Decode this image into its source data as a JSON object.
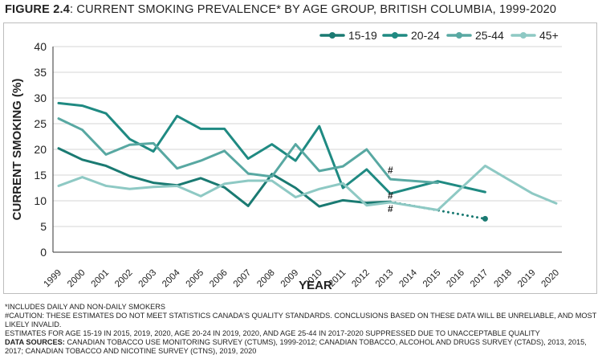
{
  "title": {
    "lead": "FIGURE 2.4",
    "rest": ": CURRENT SMOKING PREVALENCE* BY AGE GROUP, BRITISH COLUMBIA, 1999-2020"
  },
  "colors": {
    "s1519": "#1a7a72",
    "s2024": "#1f8a82",
    "s2544": "#58a8a2",
    "s45": "#8ec9c4",
    "grid": "#d6d6d6",
    "axis": "#333333"
  },
  "chart_data": {
    "type": "line",
    "xlabel": "YEAR",
    "ylabel": "CURRENT SMOKING (%)",
    "ylim": [
      0,
      40
    ],
    "yticks": [
      0,
      5,
      10,
      15,
      20,
      25,
      30,
      35,
      40
    ],
    "categories": [
      "1999",
      "2000",
      "2001",
      "2002",
      "2003",
      "2004",
      "2005",
      "2006",
      "2007",
      "2008",
      "2009",
      "2010",
      "2011",
      "2012",
      "2013",
      "2014",
      "2015",
      "2016",
      "2017",
      "2018",
      "2019",
      "2020"
    ],
    "grid": "horizontal",
    "legend_position": "top-right",
    "series": [
      {
        "name": "15-19",
        "color_key": "s1519",
        "marker": "circle",
        "points": [
          [
            "1999",
            20.2
          ],
          [
            "2000",
            18.0
          ],
          [
            "2001",
            16.8
          ],
          [
            "2002",
            14.8
          ],
          [
            "2003",
            13.5
          ],
          [
            "2004",
            13.0
          ],
          [
            "2005",
            14.4
          ],
          [
            "2006",
            12.6
          ],
          [
            "2007",
            9.0
          ],
          [
            "2008",
            15.2
          ],
          [
            "2009",
            12.5
          ],
          [
            "2010",
            8.9
          ],
          [
            "2011",
            10.1
          ],
          [
            "2012",
            9.6
          ],
          [
            "2013",
            9.8
          ]
        ],
        "dotted_points": [
          [
            "2013",
            9.8
          ],
          [
            "2017",
            6.5
          ]
        ]
      },
      {
        "name": "20-24",
        "color_key": "s2024",
        "marker": "circle",
        "points": [
          [
            "1999",
            29.0
          ],
          [
            "2000",
            28.5
          ],
          [
            "2001",
            27.0
          ],
          [
            "2002",
            22.0
          ],
          [
            "2003",
            19.6
          ],
          [
            "2004",
            26.5
          ],
          [
            "2005",
            24.0
          ],
          [
            "2006",
            24.0
          ],
          [
            "2007",
            18.2
          ],
          [
            "2008",
            21.0
          ],
          [
            "2009",
            17.8
          ],
          [
            "2010",
            24.5
          ],
          [
            "2011",
            12.5
          ],
          [
            "2012",
            16.1
          ],
          [
            "2013",
            11.4
          ],
          [
            "2015",
            13.8
          ],
          [
            "2017",
            11.7
          ]
        ]
      },
      {
        "name": "25-44",
        "color_key": "s2544",
        "marker": "circle",
        "points": [
          [
            "1999",
            26.0
          ],
          [
            "2000",
            23.8
          ],
          [
            "2001",
            19.0
          ],
          [
            "2002",
            20.9
          ],
          [
            "2003",
            21.2
          ],
          [
            "2004",
            16.3
          ],
          [
            "2005",
            17.8
          ],
          [
            "2006",
            19.7
          ],
          [
            "2007",
            15.3
          ],
          [
            "2008",
            14.7
          ],
          [
            "2009",
            21.0
          ],
          [
            "2010",
            15.8
          ],
          [
            "2011",
            16.7
          ],
          [
            "2012",
            20.0
          ],
          [
            "2013",
            14.2
          ],
          [
            "2015",
            13.5
          ]
        ]
      },
      {
        "name": "45+",
        "color_key": "s45",
        "marker": "circle",
        "points": [
          [
            "1999",
            12.9
          ],
          [
            "2000",
            14.6
          ],
          [
            "2001",
            12.9
          ],
          [
            "2002",
            12.3
          ],
          [
            "2003",
            12.7
          ],
          [
            "2004",
            12.9
          ],
          [
            "2005",
            10.9
          ],
          [
            "2006",
            13.3
          ],
          [
            "2007",
            13.9
          ],
          [
            "2008",
            13.9
          ],
          [
            "2009",
            10.7
          ],
          [
            "2010",
            12.3
          ],
          [
            "2011",
            13.4
          ],
          [
            "2012",
            9.1
          ],
          [
            "2013",
            9.7
          ],
          [
            "2015",
            8.2
          ],
          [
            "2017",
            16.8
          ],
          [
            "2019",
            11.4
          ],
          [
            "2020",
            9.5
          ]
        ]
      }
    ],
    "annotations": [
      {
        "text": "#",
        "x": "2013",
        "y": 15.3
      },
      {
        "text": "#",
        "x": "2013",
        "y": 10.4
      },
      {
        "text": "#",
        "x": "2013",
        "y": 7.8
      }
    ]
  },
  "notes": {
    "n1": "*INCLUDES DAILY AND NON-DAILY SMOKERS",
    "n2": "#CAUTION: THESE ESTIMATES DO NOT MEET STATISTICS CANADA'S QUALITY STANDARDS. CONCLUSIONS BASED ON THESE DATA WILL BE UNRELIABLE, AND MOST LIKELY INVALID.",
    "n3": "ESTIMATES FOR AGE 15-19 IN 2015, 2019, 2020, AGE 20-24 IN 2019, 2020, AND AGE 25-44 IN 2017-2020 SUPPRESSED DUE TO UNACCEPTABLE QUALITY",
    "n4_label": "DATA SOURCES:",
    "n4": " CANADIAN TOBACCO USE MONITORING SURVEY (CTUMS), 1999-2012; CANADIAN TOBACCO, ALCOHOL AND DRUGS SURVEY (CTADS), 2013, 2015, 2017; CANADIAN TOBACCO AND NICOTINE SURVEY (CTNS), 2019, 2020"
  }
}
